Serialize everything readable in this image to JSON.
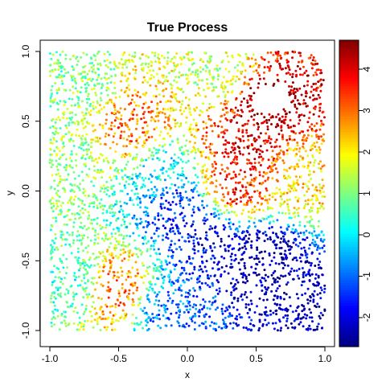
{
  "chart_data": {
    "type": "scatter",
    "title": "True Process",
    "xlabel": "x",
    "ylabel": "y",
    "xlim": [
      -1.0,
      1.0
    ],
    "ylim": [
      -1.0,
      1.0
    ],
    "x_ticks": [
      "-1.0",
      "-0.5",
      "0.0",
      "0.5",
      "1.0"
    ],
    "x_tick_values": [
      -1.0,
      -0.5,
      0.0,
      0.5,
      1.0
    ],
    "y_ticks": [
      "-1.0",
      "-0.5",
      "0.0",
      "0.5",
      "1.0"
    ],
    "y_tick_values": [
      -1.0,
      -0.5,
      0.0,
      0.5,
      1.0
    ],
    "colorbar": {
      "range": [
        -2.7,
        4.7
      ],
      "ticks": [
        "-2",
        "-1",
        "0",
        "1",
        "2",
        "3",
        "4"
      ],
      "tick_values": [
        -2,
        -1,
        0,
        1,
        2,
        3,
        4
      ],
      "colormap": [
        "#00007f",
        "#0000ff",
        "#007fff",
        "#00ffff",
        "#7fff7f",
        "#ffff00",
        "#ff7f00",
        "#ff0000",
        "#7f0000"
      ]
    },
    "field_samples": [
      {
        "x": 0.6,
        "y": 0.6,
        "value": 4.6
      },
      {
        "x": 0.4,
        "y": 0.35,
        "value": 3.9
      },
      {
        "x": 0.35,
        "y": 0.05,
        "value": 3.6
      },
      {
        "x": 0.85,
        "y": 0.1,
        "value": 2.2
      },
      {
        "x": 0.2,
        "y": 0.85,
        "value": 1.5
      },
      {
        "x": -0.4,
        "y": 0.45,
        "value": 3.0
      },
      {
        "x": -0.8,
        "y": 0.8,
        "value": 1.0
      },
      {
        "x": -0.85,
        "y": 0.2,
        "value": 1.2
      },
      {
        "x": -0.2,
        "y": 0.1,
        "value": 0.0
      },
      {
        "x": -0.1,
        "y": -0.1,
        "value": -1.5
      },
      {
        "x": 0.15,
        "y": -0.35,
        "value": -2.0
      },
      {
        "x": 0.55,
        "y": -0.5,
        "value": -2.5
      },
      {
        "x": 0.85,
        "y": -0.75,
        "value": -2.3
      },
      {
        "x": -0.5,
        "y": -0.7,
        "value": 3.0
      },
      {
        "x": -0.85,
        "y": -0.65,
        "value": 0.5
      },
      {
        "x": -0.15,
        "y": -0.85,
        "value": -1.0
      }
    ],
    "empty_region": {
      "x": 0.6,
      "y": 0.65,
      "rx": 0.13,
      "ry": 0.1
    }
  }
}
